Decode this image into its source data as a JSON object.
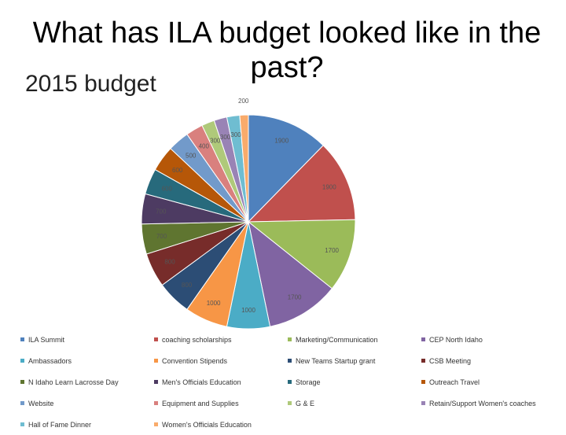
{
  "page": {
    "title": "What has ILA budget looked like in the past?",
    "subtitle": "2015 budget"
  },
  "chart_data": {
    "type": "pie",
    "title": "2015 budget",
    "legend_position": "bottom",
    "slices": [
      {
        "label": "ILA Summit",
        "value": 1900,
        "value_label": "1900",
        "color": "#4f81bd"
      },
      {
        "label": "coaching scholarships",
        "value": 1900,
        "value_label": "1900",
        "color": "#c0504d"
      },
      {
        "label": "Marketing/Communication",
        "value": 1700,
        "value_label": "1700",
        "color": "#9bbb59"
      },
      {
        "label": "CEP North Idaho",
        "value": 1700,
        "value_label": "1700",
        "color": "#8064a2"
      },
      {
        "label": "Ambassadors",
        "value": 1000,
        "value_label": "1000",
        "color": "#4bacc6"
      },
      {
        "label": "Convention Stipends",
        "value": 1000,
        "value_label": "1000",
        "color": "#f79646"
      },
      {
        "label": "New Teams Startup grant",
        "value": 800,
        "value_label": "800",
        "color": "#2c4d75"
      },
      {
        "label": "CSB Meeting",
        "value": 800,
        "value_label": "800",
        "color": "#772c2a"
      },
      {
        "label": "N Idaho Learn Lacrosse Day",
        "value": 700,
        "value_label": "700",
        "color": "#5f7530"
      },
      {
        "label": "Men's Officials Education",
        "value": 700,
        "value_label": "700",
        "color": "#4d3b62"
      },
      {
        "label": "Storage",
        "value": 600,
        "value_label": "600",
        "color": "#276a7c"
      },
      {
        "label": "Outreach Travel",
        "value": 600,
        "value_label": "600",
        "color": "#b65708"
      },
      {
        "label": "Website",
        "value": 500,
        "value_label": "500",
        "color": "#729aca"
      },
      {
        "label": "Equipment and Supplies",
        "value": 400,
        "value_label": "400",
        "color": "#d9807e"
      },
      {
        "label": "G & E",
        "value": 300,
        "value_label": "300",
        "color": "#afc97a"
      },
      {
        "label": "Retain/Support Women's coaches",
        "value": 300,
        "value_label": "300",
        "color": "#9983b5"
      },
      {
        "label": "Hall of Fame Dinner",
        "value": 300,
        "value_label": "300",
        "color": "#6fbdd1"
      },
      {
        "label": "Women's Officials Education",
        "value": 200,
        "value_label": "200",
        "color": "#f9ab6b"
      }
    ]
  }
}
